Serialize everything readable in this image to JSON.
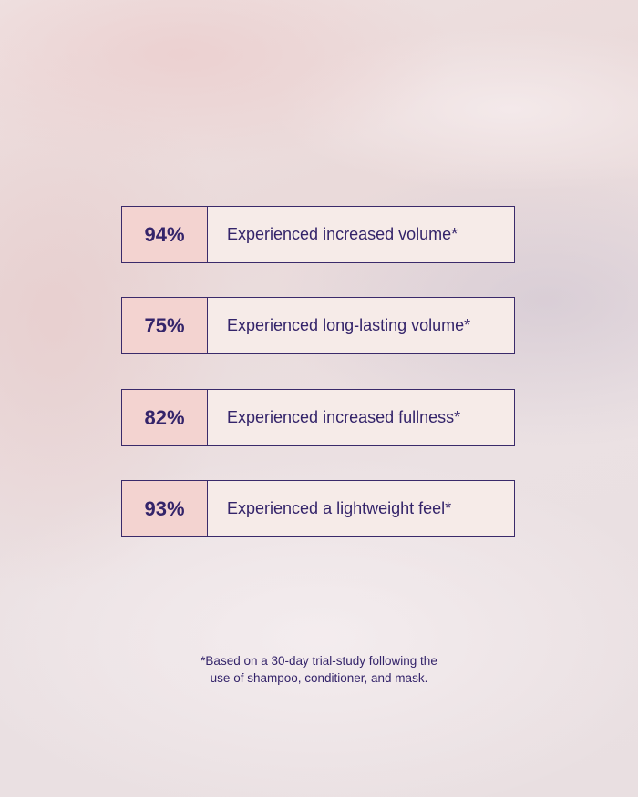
{
  "stats": [
    {
      "percent": "94%",
      "label": "Experienced increased volume*"
    },
    {
      "percent": "75%",
      "label": "Experienced long-lasting volume*"
    },
    {
      "percent": "82%",
      "label": "Experienced increased fullness*"
    },
    {
      "percent": "93%",
      "label": "Experienced a lightweight feel*"
    }
  ],
  "footnote": {
    "line1": "*Based on a 30-day trial-study following the",
    "line2": "use of shampoo, conditioner, and mask."
  },
  "colors": {
    "text": "#34246a",
    "percent_bg": "#f3d3d0",
    "label_bg": "#f6ebe8",
    "border": "#3a2a6a"
  }
}
